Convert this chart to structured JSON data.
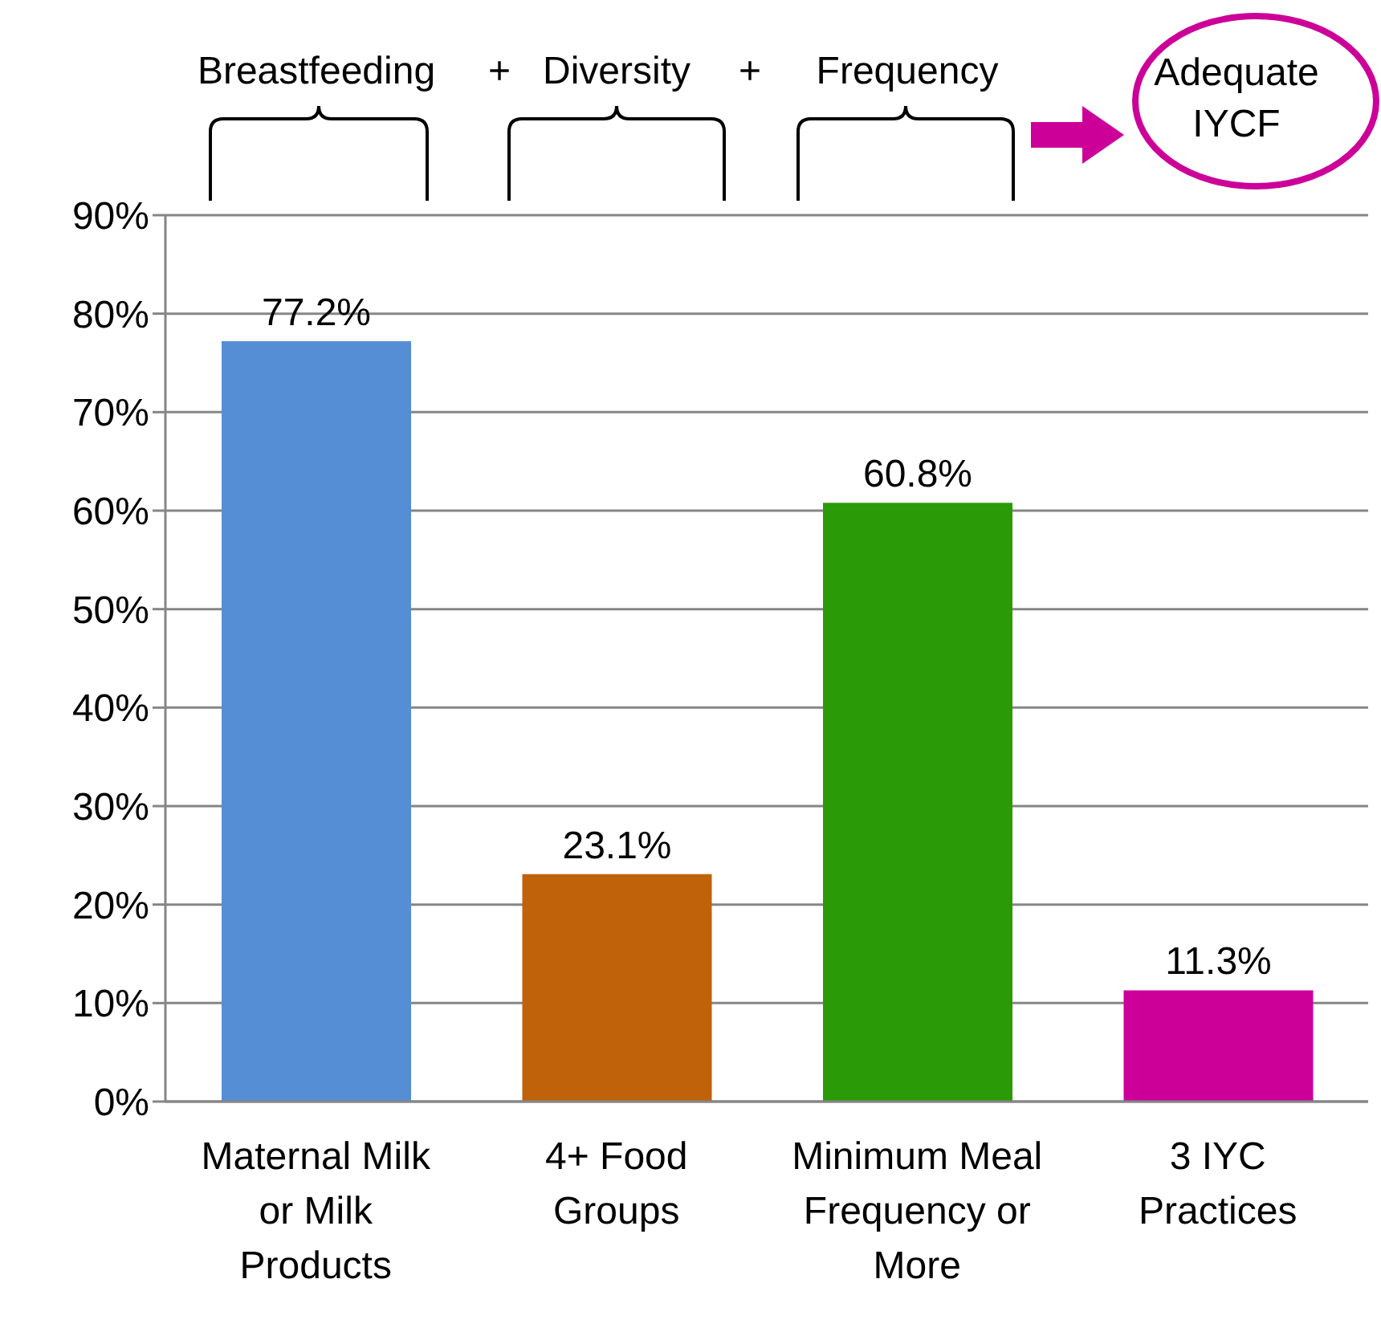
{
  "chart_data": {
    "type": "bar",
    "categories": [
      "Maternal Milk or Milk Products",
      "4+ Food Groups",
      "Minimum Meal Frequency or More",
      "3 IYC Practices"
    ],
    "values": [
      77.2,
      23.1,
      60.8,
      11.3
    ],
    "colors": [
      "#558ed5",
      "#c0620a",
      "#2a9a06",
      "#cc0099"
    ],
    "value_labels": [
      "77.2%",
      "23.1%",
      "60.8%",
      "11.3%"
    ],
    "ylim": [
      0,
      90
    ],
    "yticks": [
      {
        "value": 0,
        "label": "0%"
      },
      {
        "value": 10,
        "label": "10%"
      },
      {
        "value": 20,
        "label": "20%"
      },
      {
        "value": 30,
        "label": "30%"
      },
      {
        "value": 40,
        "label": "40%"
      },
      {
        "value": 50,
        "label": "50%"
      },
      {
        "value": 60,
        "label": "60%"
      },
      {
        "value": 70,
        "label": "70%"
      },
      {
        "value": 80,
        "label": "80%"
      },
      {
        "value": 90,
        "label": "90%"
      }
    ],
    "grid": "y",
    "annotations": [
      "Breastfeeding",
      "+",
      "Diversity",
      "+",
      "Frequency",
      "Adequate IYCF"
    ]
  }
}
